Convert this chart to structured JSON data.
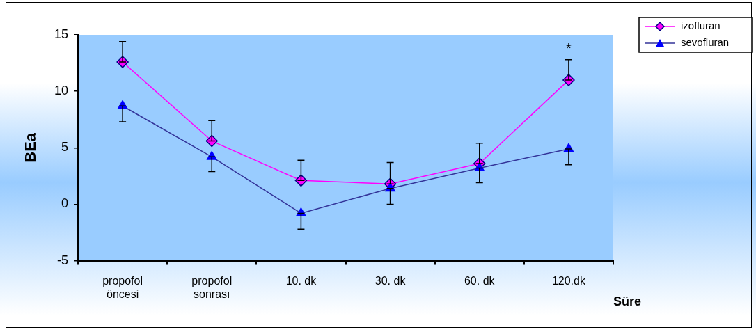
{
  "chart_data": {
    "type": "line",
    "xlabel": "Süre",
    "ylabel": "BEa",
    "categories": [
      "propofol\nöncesi",
      "propofol\nsonrası",
      "10. dk",
      "30. dk",
      "60. dk",
      "120.dk"
    ],
    "series": [
      {
        "name": "izofluran",
        "color": "#ff00ff",
        "marker": "diamond",
        "values": [
          12.6,
          5.6,
          2.1,
          1.8,
          3.6,
          11.0
        ],
        "errors": [
          [
            12.6,
            14.4
          ],
          [
            5.6,
            7.4
          ],
          [
            2.1,
            3.9
          ],
          [
            1.8,
            3.7
          ],
          [
            3.6,
            5.4
          ],
          [
            11.0,
            12.8
          ]
        ]
      },
      {
        "name": "sevofluran",
        "color": "#333399",
        "marker": "triangle",
        "values": [
          8.7,
          4.2,
          -0.8,
          1.4,
          3.2,
          4.9
        ],
        "errors": [
          [
            7.3,
            8.7
          ],
          [
            2.9,
            4.2
          ],
          [
            -2.2,
            -0.8
          ],
          [
            0.0,
            1.4
          ],
          [
            1.9,
            3.2
          ],
          [
            3.5,
            4.9
          ]
        ]
      }
    ],
    "ylim": [
      -5,
      15
    ],
    "yticks": [
      -5,
      0,
      5,
      10,
      15
    ],
    "grid": false,
    "legend": "top right",
    "line_style": "solid",
    "annotations": [
      "*"
    ]
  }
}
